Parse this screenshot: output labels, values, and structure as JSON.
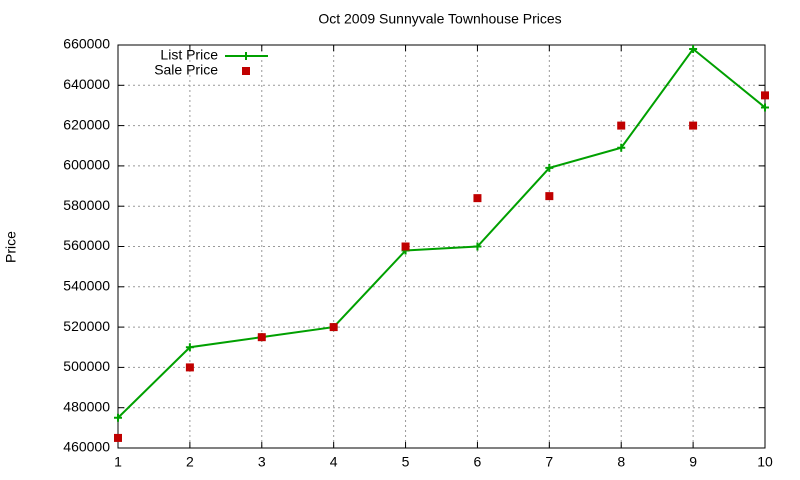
{
  "chart_data": {
    "type": "line",
    "title": "Oct 2009 Sunnyvale Townhouse Prices",
    "y_label": "Price",
    "x": [
      1,
      2,
      3,
      4,
      5,
      6,
      7,
      8,
      9,
      10
    ],
    "series": [
      {
        "name": "List Price",
        "color": "#00a000",
        "style": "linespoints",
        "values": [
          475000,
          510000,
          515000,
          520000,
          558000,
          560000,
          599000,
          609000,
          658000,
          629000
        ]
      },
      {
        "name": "Sale Price",
        "color": "#c00000",
        "style": "points",
        "values": [
          465000,
          500000,
          515000,
          520000,
          560000,
          584000,
          585000,
          620000,
          620000,
          635000
        ]
      }
    ],
    "xlim": [
      1,
      10
    ],
    "xticks": [
      1,
      2,
      3,
      4,
      5,
      6,
      7,
      8,
      9,
      10
    ],
    "ylim": [
      460000,
      660000
    ],
    "yticks": [
      460000,
      480000,
      500000,
      520000,
      540000,
      560000,
      580000,
      600000,
      620000,
      640000,
      660000
    ],
    "grid": true,
    "legend": "top-left"
  }
}
